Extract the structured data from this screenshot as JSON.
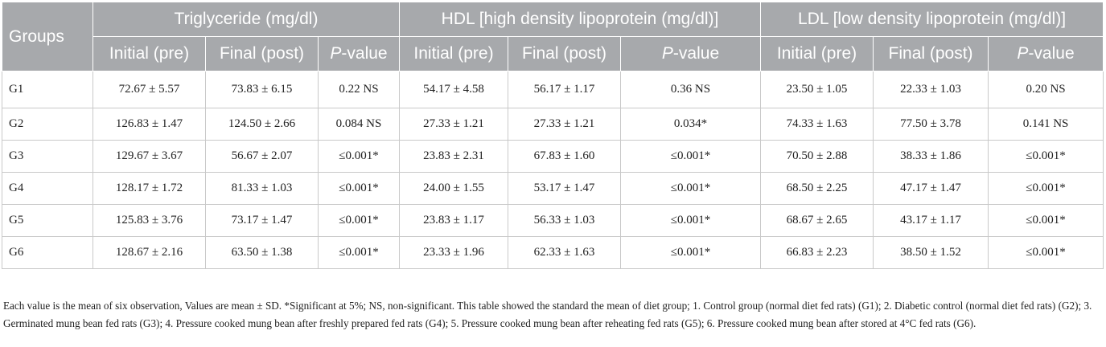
{
  "table": {
    "header_groups": {
      "groups": "Groups",
      "triglyceride": "Triglyceride (mg/dl)",
      "hdl": "HDL [high density lipoprotein (mg/dl)]",
      "ldl": "LDL [low density lipoprotein (mg/dl)]"
    },
    "sub_headers": {
      "initial": "Initial (pre)",
      "final": "Final (post)",
      "p_italic": "P",
      "p_rest": "-value"
    },
    "rows": [
      {
        "group": "G1",
        "cells": [
          "72.67 ± 5.57",
          "73.83 ± 6.15",
          "0.22 NS",
          "54.17 ± 4.58",
          "56.17 ± 1.17",
          "0.36 NS",
          "23.50 ± 1.05",
          "22.33 ± 1.03",
          "0.20 NS"
        ]
      },
      {
        "group": "G2",
        "cells": [
          "126.83 ± 1.47",
          "124.50 ± 2.66",
          "0.084 NS",
          "27.33 ± 1.21",
          "27.33 ± 1.21",
          "0.034*",
          "74.33 ± 1.63",
          "77.50 ± 3.78",
          "0.141 NS"
        ]
      },
      {
        "group": "G3",
        "cells": [
          "129.67 ± 3.67",
          "56.67 ± 2.07",
          "≤0.001*",
          "23.83 ± 2.31",
          "67.83 ± 1.60",
          "≤0.001*",
          "70.50 ± 2.88",
          "38.33 ± 1.86",
          "≤0.001*"
        ]
      },
      {
        "group": "G4",
        "cells": [
          "128.17 ± 1.72",
          "81.33 ± 1.03",
          "≤0.001*",
          "24.00 ± 1.55",
          "53.17 ± 1.47",
          "≤0.001*",
          "68.50 ± 2.25",
          "47.17 ± 1.47",
          "≤0.001*"
        ]
      },
      {
        "group": "G5",
        "cells": [
          "125.83 ± 3.76",
          "73.17 ± 1.47",
          "≤0.001*",
          "23.83 ± 1.17",
          "56.33 ± 1.03",
          "≤0.001*",
          "68.67 ± 2.65",
          "43.17 ± 1.17",
          "≤0.001*"
        ]
      },
      {
        "group": "G6",
        "cells": [
          "128.67 ± 2.16",
          "63.50 ± 1.38",
          "≤0.001*",
          "23.33 ± 1.96",
          "62.33 ± 1.63",
          "≤0.001*",
          "66.83 ± 2.23",
          "38.50 ± 1.52",
          "≤0.001*"
        ]
      }
    ]
  },
  "footnote": "Each value is the mean of six observation, Values are mean ± SD. *Significant at 5%; NS, non-significant. This table showed the standard the mean of diet group; 1. Control group (normal diet fed rats) (G1); 2. Diabetic control (normal diet fed rats) (G2); 3. Germinated mung bean fed rats (G3); 4. Pressure cooked mung bean after freshly prepared fed rats (G4); 5. Pressure cooked mung bean after reheating fed rats (G5); 6. Pressure cooked mung bean after stored at 4°C fed rats (G6).",
  "colors": {
    "header_bg": "#a7a9ac",
    "header_text": "#ffffff",
    "border": "#c9c9c9",
    "body_text": "#222222"
  }
}
